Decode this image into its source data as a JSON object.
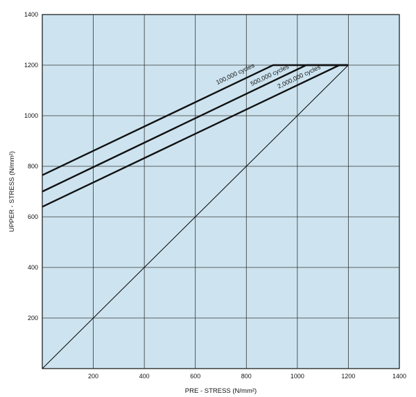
{
  "chart_data": {
    "type": "line",
    "title": "",
    "xlabel": "PRE - STRESS (N/mm²)",
    "ylabel": "UPPER - STRESS (N/mm²)",
    "xlim": [
      0,
      1400
    ],
    "ylim": [
      0,
      1400
    ],
    "x_ticks": [
      200,
      400,
      600,
      800,
      1000,
      1200,
      1400
    ],
    "y_ticks": [
      200,
      400,
      600,
      800,
      1000,
      1200,
      1400
    ],
    "grid": true,
    "background_color": "#cde4f0",
    "line_color": "#111111",
    "series": [
      {
        "name": "100,000 cycles",
        "x": [
          0,
          905,
          1200
        ],
        "y": [
          765,
          1200,
          1200
        ],
        "style": "thick"
      },
      {
        "name": "500,000 cycles",
        "x": [
          0,
          1035,
          1200
        ],
        "y": [
          700,
          1200,
          1200
        ],
        "style": "thick"
      },
      {
        "name": "2,000,000 cycles",
        "x": [
          0,
          1165,
          1200
        ],
        "y": [
          640,
          1200,
          1200
        ],
        "style": "thick"
      },
      {
        "name": "",
        "x": [
          0,
          1200
        ],
        "y": [
          0,
          1200
        ],
        "style": "thin"
      }
    ],
    "annotations": [
      {
        "text": "100,000 cycles",
        "x": 760,
        "y": 1158
      },
      {
        "text": "500,000 cycles",
        "x": 895,
        "y": 1153
      },
      {
        "text": "2,000,000 cycles",
        "x": 1010,
        "y": 1147
      }
    ]
  }
}
